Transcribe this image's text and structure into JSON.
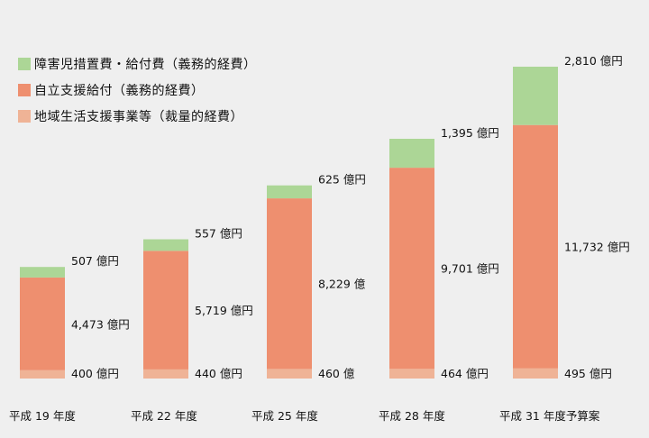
{
  "chart_data": {
    "type": "bar",
    "stacked": true,
    "categories": [
      "平成 19 年度",
      "平成 22 年度",
      "平成 25 年度",
      "平成 28 年度",
      "平成 31 年度予算案"
    ],
    "series": [
      {
        "name": "地域生活支援事業等（裁量的経費）",
        "color": "#efb396",
        "values": [
          400,
          440,
          460,
          464,
          495
        ],
        "labels": [
          "400 億円",
          "440 億円",
          "460 億",
          "464 億円",
          "495 億円"
        ]
      },
      {
        "name": "自立支援給付（義務的経費）",
        "color": "#ee8f6f",
        "values": [
          4473,
          5719,
          8229,
          9701,
          11732
        ],
        "labels": [
          "4,473 億円",
          "5,719 億円",
          "8,229 億",
          "9,701 億円",
          "11,732 億円"
        ]
      },
      {
        "name": "障害児措置費・給付費（義務的経費）",
        "color": "#acd696",
        "values": [
          507,
          557,
          625,
          1395,
          2810
        ],
        "labels": [
          "507 億円",
          "557 億円",
          "625 億円",
          "1,395 億円",
          "2,810 億円"
        ]
      }
    ],
    "legend_order": [
      2,
      1,
      0
    ],
    "legend_position": "top-left",
    "grid": false
  }
}
